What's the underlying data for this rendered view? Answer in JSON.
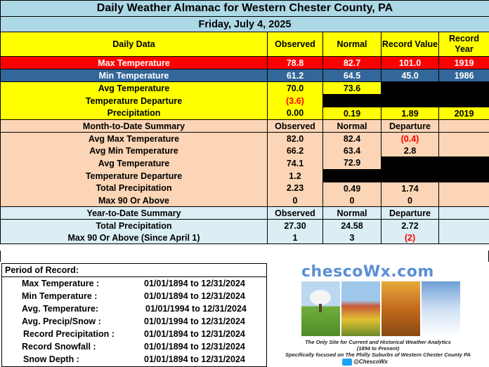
{
  "title": "Daily Weather Almanac for Western Chester County, PA",
  "date": "Friday, July 4, 2025",
  "daily": {
    "headers": {
      "label": "Daily Data",
      "observed": "Observed",
      "normal": "Normal",
      "record_value": "Record Value",
      "record_year": "Record Year"
    },
    "rows": [
      {
        "label": "Max Temperature",
        "observed": "78.8",
        "normal": "82.7",
        "record_value": "101.0",
        "record_year": "1919"
      },
      {
        "label": "Min Temperature",
        "observed": "61.2",
        "normal": "64.5",
        "record_value": "45.0",
        "record_year": "1986"
      },
      {
        "label": "Avg Temperature",
        "observed": "70.0",
        "normal": "73.6"
      },
      {
        "label": "Temperature Departure",
        "observed": "(3.6)"
      },
      {
        "label": "Precipitation",
        "observed": "0.00",
        "normal": "0.19",
        "record_value": "1.89",
        "record_year": "2019"
      }
    ]
  },
  "month": {
    "headers": {
      "label": "Month-to-Date Summary",
      "observed": "Observed",
      "normal": "Normal",
      "departure": "Departure"
    },
    "rows": [
      {
        "label": "Avg Max Temperature",
        "observed": "82.0",
        "normal": "82.4",
        "departure": "(0.4)"
      },
      {
        "label": "Avg Min Temperature",
        "observed": "66.2",
        "normal": "63.4",
        "departure": "2.8"
      },
      {
        "label": "Avg Temperature",
        "observed": "74.1",
        "normal": "72.9"
      },
      {
        "label": "Temperature Departure",
        "observed": "1.2"
      },
      {
        "label": "Total Precipitation",
        "observed": "2.23",
        "normal": "0.49",
        "departure": "1.74"
      },
      {
        "label": "Max 90 Or Above",
        "observed": "0",
        "normal": "0",
        "departure": "0"
      }
    ]
  },
  "year": {
    "headers": {
      "label": "Year-to-Date Summary",
      "observed": "Observed",
      "normal": "Normal",
      "departure": "Departure"
    },
    "rows": [
      {
        "label": "Total Precipitation",
        "observed": "27.30",
        "normal": "24.58",
        "departure": "2.72"
      },
      {
        "label": "Max 90 Or Above (Since April 1)",
        "observed": "1",
        "normal": "3",
        "departure": "(2)"
      }
    ]
  },
  "period": {
    "title": "Period of Record:",
    "rows": [
      {
        "label": "Max Temperature :",
        "range": "01/01/1894 to 12/31/2024"
      },
      {
        "label": "Min Temperature :",
        "range": "01/01/1894 to 12/31/2024"
      },
      {
        "label": "Avg. Temperature:",
        "range": "01/01/1994 to 12/31/2024"
      },
      {
        "label": "Avg. Precip/Snow :",
        "range": "01/01/1994 to 12/31/2024"
      },
      {
        "label": "Record Precipitation :",
        "range": "01/01/1894 to 12/31/2024"
      },
      {
        "label": "Record Snowfall :",
        "range": "01/01/1894 to 12/31/2024"
      },
      {
        "label": "Snow Depth :",
        "range": "01/01/1894 to 12/31/2024"
      }
    ]
  },
  "brand": {
    "logo": "chescoWx.com",
    "tagline1": "The Only Site for Current and Historical Weather Analytics",
    "tagline2": "(1894 to Present)",
    "tagline3": "Specifically focused on The Philly Suburbs of Western Chester County PA",
    "twitter": "@ChescoWx",
    "accent": "#5b8fd6"
  },
  "colors": {
    "max_row": "#ff0000",
    "min_row": "#336699",
    "daily_bg": "#ffff00",
    "month_bg": "#fbd5b5",
    "year_bg": "#daeef3",
    "negative": "#ff0000"
  }
}
